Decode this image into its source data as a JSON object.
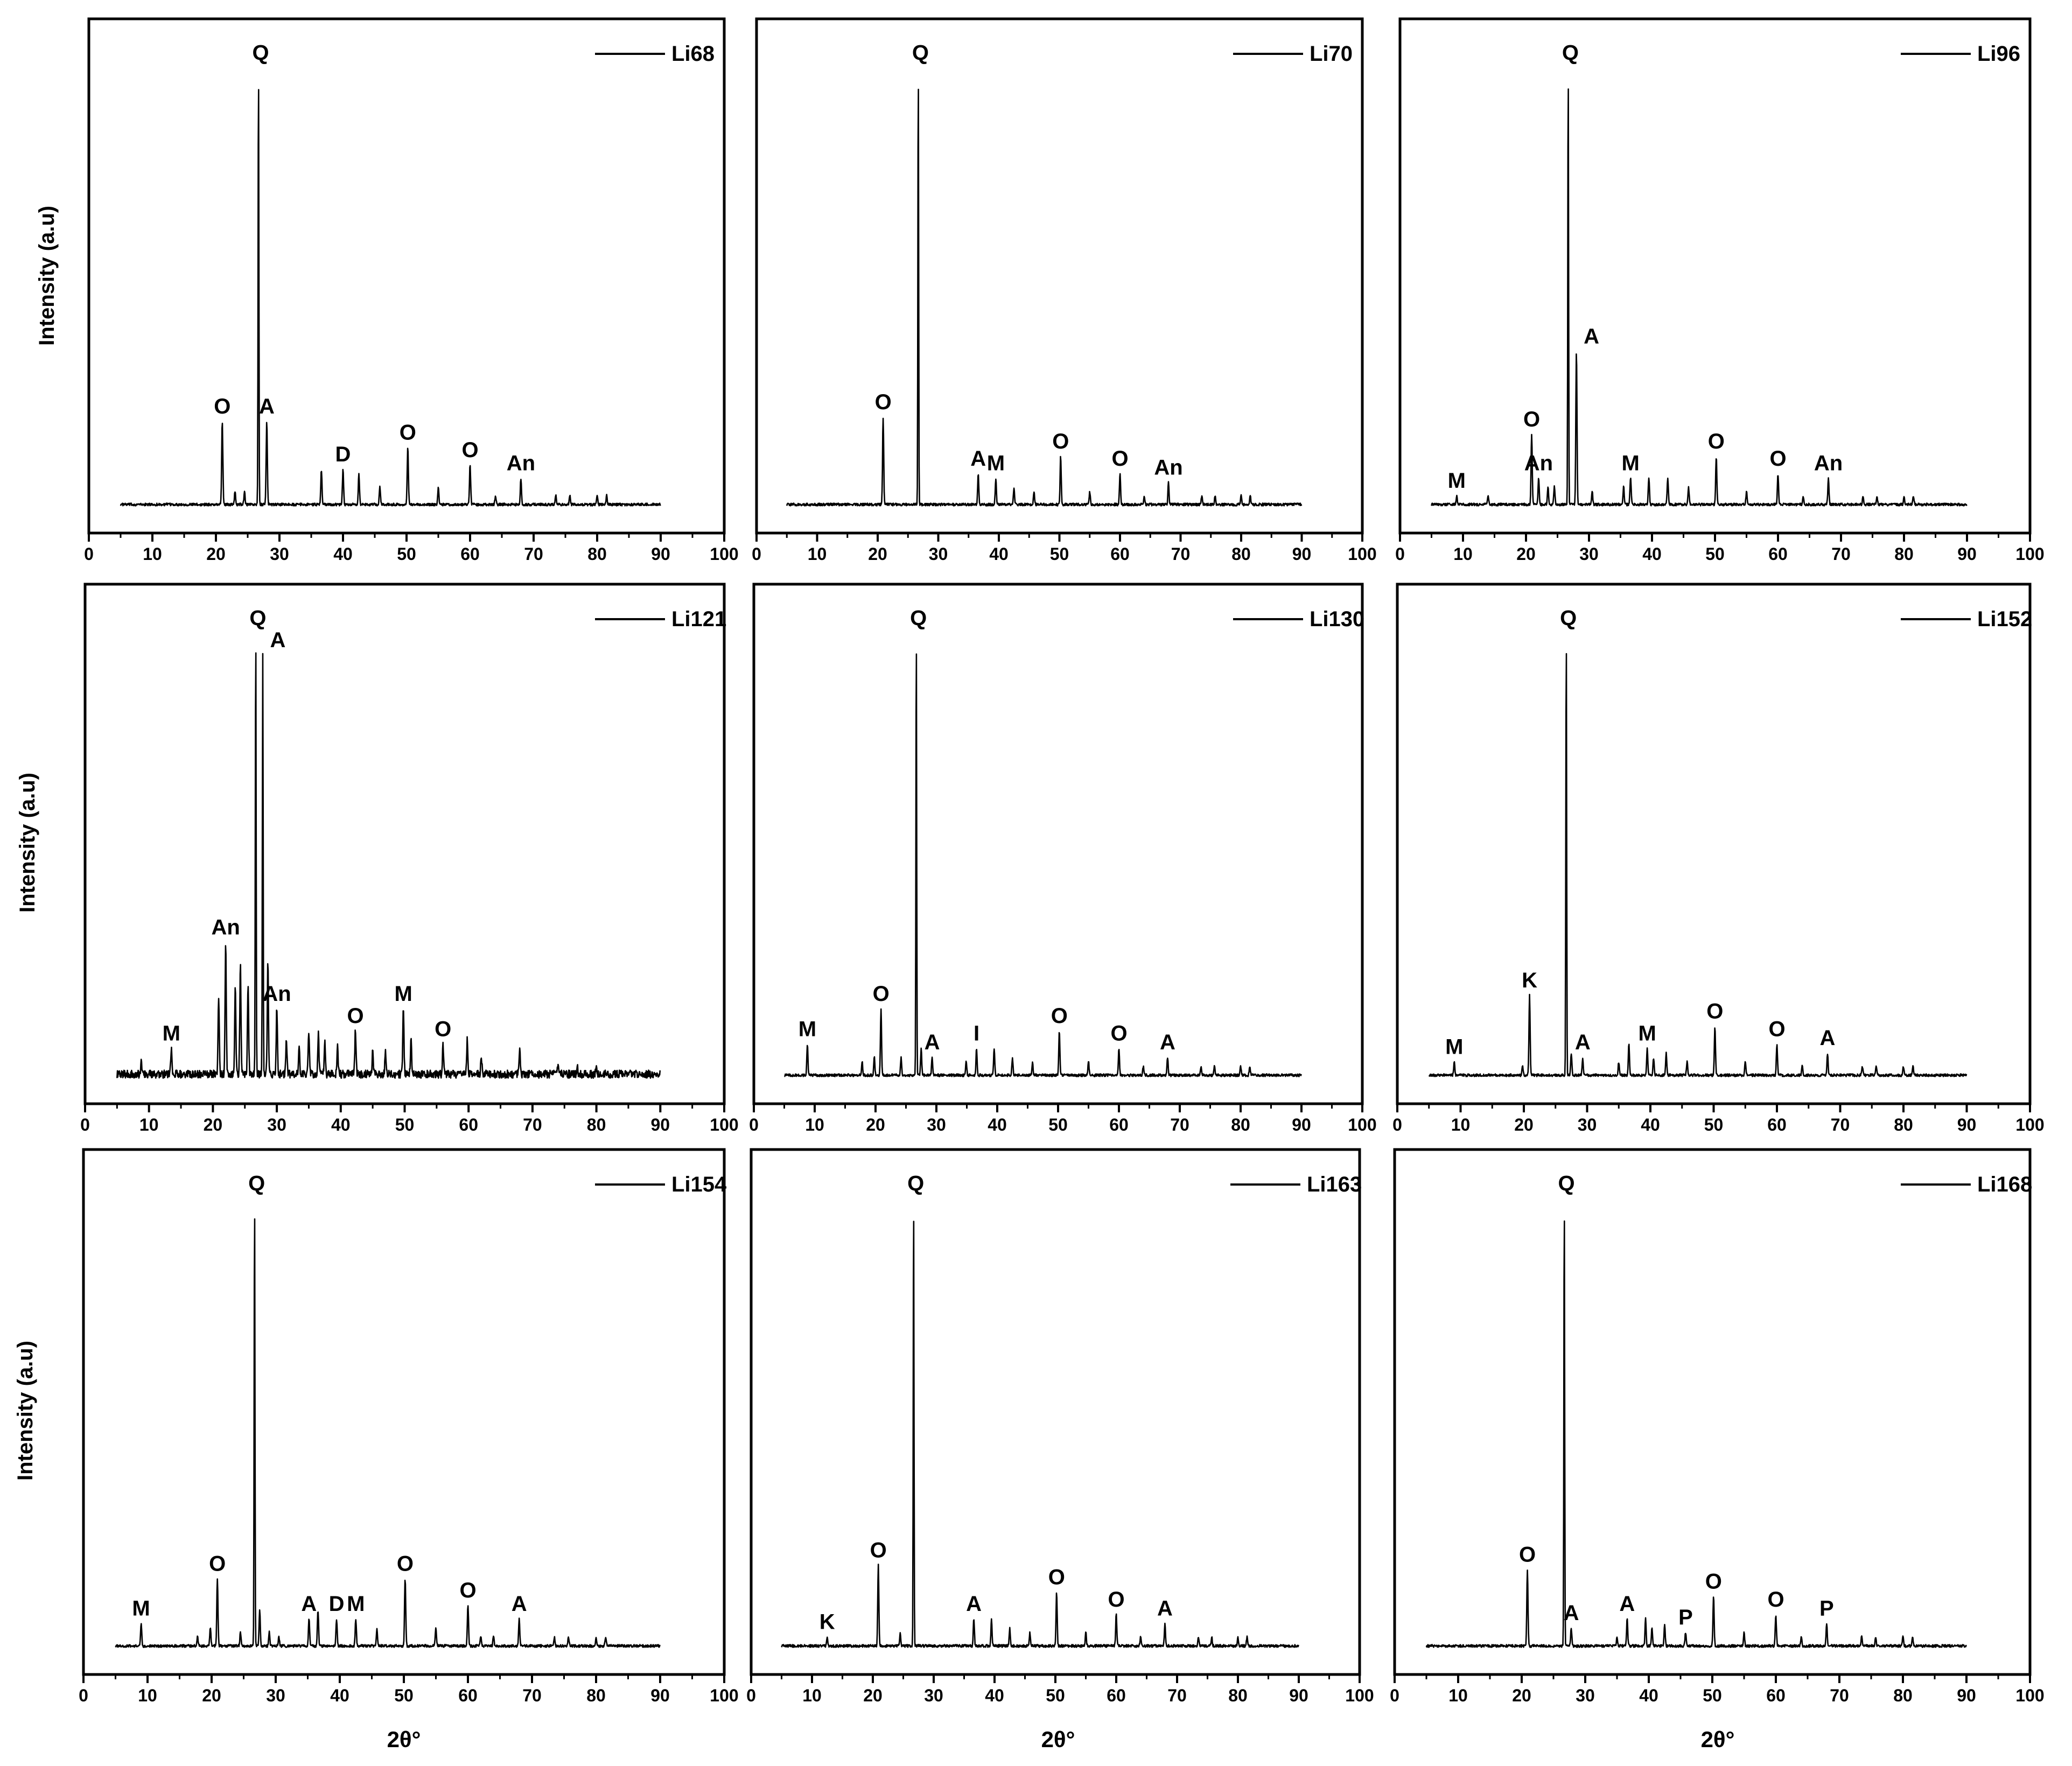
{
  "figure": {
    "y_axis_label": "Intensity (a.u)",
    "x_axis_label": "2θ°",
    "x_ticks": [
      0,
      10,
      20,
      30,
      40,
      50,
      60,
      70,
      80,
      90,
      100
    ],
    "line_color": "#000000"
  },
  "chart_data": [
    {
      "type": "line",
      "series": [
        {
          "name": "Li68"
        }
      ],
      "xlim": [
        0,
        100
      ],
      "x_range": [
        5,
        90
      ],
      "grid": false,
      "legend": "top-right",
      "peaks": [
        {
          "x": 21.0,
          "h": 0.19,
          "label": "O"
        },
        {
          "x": 23.0,
          "h": 0.03
        },
        {
          "x": 24.5,
          "h": 0.03
        },
        {
          "x": 26.7,
          "h": 1.0,
          "label": "Q"
        },
        {
          "x": 28.0,
          "h": 0.19,
          "label": "A"
        },
        {
          "x": 36.6,
          "h": 0.08
        },
        {
          "x": 40.0,
          "h": 0.08,
          "label": "D"
        },
        {
          "x": 42.5,
          "h": 0.07
        },
        {
          "x": 45.8,
          "h": 0.04
        },
        {
          "x": 50.2,
          "h": 0.13,
          "label": "O"
        },
        {
          "x": 55.0,
          "h": 0.04
        },
        {
          "x": 60.0,
          "h": 0.09,
          "label": "O"
        },
        {
          "x": 64.0,
          "h": 0.02
        },
        {
          "x": 68.0,
          "h": 0.06,
          "label": "An"
        },
        {
          "x": 73.5,
          "h": 0.02
        },
        {
          "x": 75.7,
          "h": 0.02
        },
        {
          "x": 80.0,
          "h": 0.02
        },
        {
          "x": 81.5,
          "h": 0.02
        }
      ]
    },
    {
      "type": "line",
      "series": [
        {
          "name": "Li70"
        }
      ],
      "xlim": [
        0,
        100
      ],
      "x_range": [
        5,
        90
      ],
      "grid": false,
      "legend": "top-right",
      "peaks": [
        {
          "x": 20.9,
          "h": 0.2,
          "label": "O"
        },
        {
          "x": 26.7,
          "h": 1.0,
          "label": "Q"
        },
        {
          "x": 36.6,
          "h": 0.07,
          "label": "A"
        },
        {
          "x": 39.5,
          "h": 0.06,
          "label": "M"
        },
        {
          "x": 42.5,
          "h": 0.04
        },
        {
          "x": 45.8,
          "h": 0.03
        },
        {
          "x": 50.2,
          "h": 0.11,
          "label": "O"
        },
        {
          "x": 55.0,
          "h": 0.03
        },
        {
          "x": 60.0,
          "h": 0.07,
          "label": "O"
        },
        {
          "x": 64.0,
          "h": 0.02
        },
        {
          "x": 68.0,
          "h": 0.05,
          "label": "An"
        },
        {
          "x": 73.5,
          "h": 0.02
        },
        {
          "x": 75.7,
          "h": 0.02
        },
        {
          "x": 80.0,
          "h": 0.02
        },
        {
          "x": 81.5,
          "h": 0.02
        }
      ]
    },
    {
      "type": "line",
      "series": [
        {
          "name": "Li96"
        }
      ],
      "xlim": [
        0,
        100
      ],
      "x_range": [
        5,
        90
      ],
      "grid": false,
      "legend": "top-right",
      "peaks": [
        {
          "x": 9.0,
          "h": 0.02,
          "label": "M"
        },
        {
          "x": 14.0,
          "h": 0.02
        },
        {
          "x": 20.9,
          "h": 0.16,
          "label": "O"
        },
        {
          "x": 22.0,
          "h": 0.06,
          "label": "An"
        },
        {
          "x": 23.5,
          "h": 0.04
        },
        {
          "x": 24.5,
          "h": 0.04
        },
        {
          "x": 26.7,
          "h": 1.0,
          "label": "Q"
        },
        {
          "x": 28.0,
          "h": 0.35,
          "label": "A"
        },
        {
          "x": 30.5,
          "h": 0.03
        },
        {
          "x": 35.5,
          "h": 0.04
        },
        {
          "x": 36.6,
          "h": 0.06,
          "label": "M"
        },
        {
          "x": 39.5,
          "h": 0.06
        },
        {
          "x": 42.5,
          "h": 0.06
        },
        {
          "x": 45.8,
          "h": 0.04
        },
        {
          "x": 50.2,
          "h": 0.11,
          "label": "O"
        },
        {
          "x": 55.0,
          "h": 0.03
        },
        {
          "x": 60.0,
          "h": 0.07,
          "label": "O"
        },
        {
          "x": 64.0,
          "h": 0.02
        },
        {
          "x": 68.0,
          "h": 0.06,
          "label": "An"
        },
        {
          "x": 73.5,
          "h": 0.02
        },
        {
          "x": 75.7,
          "h": 0.02
        },
        {
          "x": 80.0,
          "h": 0.02
        },
        {
          "x": 81.5,
          "h": 0.02
        }
      ]
    },
    {
      "type": "line",
      "series": [
        {
          "name": "Li121"
        }
      ],
      "xlim": [
        0,
        100
      ],
      "x_range": [
        5,
        90
      ],
      "grid": false,
      "legend": "top-right",
      "peaks": [
        {
          "x": 8.8,
          "h": 0.03
        },
        {
          "x": 13.5,
          "h": 0.06,
          "label": "M"
        },
        {
          "x": 20.9,
          "h": 0.18
        },
        {
          "x": 22.0,
          "h": 0.3,
          "label": "An"
        },
        {
          "x": 23.5,
          "h": 0.2
        },
        {
          "x": 24.3,
          "h": 0.25
        },
        {
          "x": 25.5,
          "h": 0.2
        },
        {
          "x": 26.7,
          "h": 1.0,
          "label": "Q"
        },
        {
          "x": 27.8,
          "h": 0.95,
          "label": "A"
        },
        {
          "x": 28.6,
          "h": 0.25
        },
        {
          "x": 30.0,
          "h": 0.15,
          "label": "An"
        },
        {
          "x": 31.5,
          "h": 0.08
        },
        {
          "x": 33.5,
          "h": 0.06
        },
        {
          "x": 35.0,
          "h": 0.1
        },
        {
          "x": 36.5,
          "h": 0.09
        },
        {
          "x": 37.5,
          "h": 0.07
        },
        {
          "x": 39.5,
          "h": 0.06
        },
        {
          "x": 42.3,
          "h": 0.1,
          "label": "O"
        },
        {
          "x": 45.0,
          "h": 0.05
        },
        {
          "x": 47.0,
          "h": 0.05
        },
        {
          "x": 49.8,
          "h": 0.15,
          "label": "M"
        },
        {
          "x": 51.0,
          "h": 0.08
        },
        {
          "x": 56.0,
          "h": 0.07,
          "label": "O"
        },
        {
          "x": 59.8,
          "h": 0.08
        },
        {
          "x": 62.0,
          "h": 0.04
        },
        {
          "x": 68.0,
          "h": 0.06
        },
        {
          "x": 74.0,
          "h": 0.02
        },
        {
          "x": 77.0,
          "h": 0.02
        },
        {
          "x": 80.0,
          "h": 0.02
        }
      ]
    },
    {
      "type": "line",
      "series": [
        {
          "name": "Li130"
        }
      ],
      "xlim": [
        0,
        100
      ],
      "x_range": [
        5,
        90
      ],
      "grid": false,
      "legend": "top-right",
      "peaks": [
        {
          "x": 8.8,
          "h": 0.07,
          "label": "M"
        },
        {
          "x": 17.8,
          "h": 0.03
        },
        {
          "x": 19.8,
          "h": 0.04
        },
        {
          "x": 20.9,
          "h": 0.15,
          "label": "O"
        },
        {
          "x": 24.2,
          "h": 0.04
        },
        {
          "x": 26.7,
          "h": 1.0,
          "label": "Q"
        },
        {
          "x": 27.5,
          "h": 0.06
        },
        {
          "x": 29.3,
          "h": 0.04,
          "label": "A"
        },
        {
          "x": 34.9,
          "h": 0.03
        },
        {
          "x": 36.6,
          "h": 0.06,
          "label": "I"
        },
        {
          "x": 39.5,
          "h": 0.06
        },
        {
          "x": 42.5,
          "h": 0.04
        },
        {
          "x": 45.8,
          "h": 0.03
        },
        {
          "x": 50.2,
          "h": 0.1,
          "label": "O"
        },
        {
          "x": 55.0,
          "h": 0.03
        },
        {
          "x": 60.0,
          "h": 0.06,
          "label": "O"
        },
        {
          "x": 64.0,
          "h": 0.02
        },
        {
          "x": 68.0,
          "h": 0.04,
          "label": "A"
        },
        {
          "x": 73.5,
          "h": 0.02
        },
        {
          "x": 75.7,
          "h": 0.02
        },
        {
          "x": 80.0,
          "h": 0.02
        },
        {
          "x": 81.5,
          "h": 0.02
        }
      ]
    },
    {
      "type": "line",
      "series": [
        {
          "name": "Li152"
        }
      ],
      "xlim": [
        0,
        100
      ],
      "x_range": [
        5,
        90
      ],
      "grid": false,
      "legend": "top-right",
      "peaks": [
        {
          "x": 9.0,
          "h": 0.03,
          "label": "M"
        },
        {
          "x": 19.8,
          "h": 0.02
        },
        {
          "x": 20.9,
          "h": 0.18,
          "label": "K"
        },
        {
          "x": 26.7,
          "h": 1.0,
          "label": "Q"
        },
        {
          "x": 27.5,
          "h": 0.05
        },
        {
          "x": 29.3,
          "h": 0.04,
          "label": "A"
        },
        {
          "x": 35.0,
          "h": 0.03
        },
        {
          "x": 36.6,
          "h": 0.07
        },
        {
          "x": 39.5,
          "h": 0.06,
          "label": "M"
        },
        {
          "x": 40.5,
          "h": 0.04
        },
        {
          "x": 42.5,
          "h": 0.05
        },
        {
          "x": 45.8,
          "h": 0.03
        },
        {
          "x": 50.2,
          "h": 0.11,
          "label": "O"
        },
        {
          "x": 55.0,
          "h": 0.03
        },
        {
          "x": 60.0,
          "h": 0.07,
          "label": "O"
        },
        {
          "x": 64.0,
          "h": 0.02
        },
        {
          "x": 68.0,
          "h": 0.05,
          "label": "A"
        },
        {
          "x": 73.5,
          "h": 0.02
        },
        {
          "x": 75.7,
          "h": 0.02
        },
        {
          "x": 80.0,
          "h": 0.02
        },
        {
          "x": 81.5,
          "h": 0.02
        }
      ]
    },
    {
      "type": "line",
      "series": [
        {
          "name": "Li154"
        }
      ],
      "xlim": [
        0,
        100
      ],
      "x_range": [
        5,
        90
      ],
      "grid": false,
      "legend": "top-right",
      "peaks": [
        {
          "x": 9.0,
          "h": 0.05,
          "label": "M"
        },
        {
          "x": 17.8,
          "h": 0.02
        },
        {
          "x": 19.8,
          "h": 0.04
        },
        {
          "x": 20.9,
          "h": 0.15,
          "label": "O"
        },
        {
          "x": 24.5,
          "h": 0.03
        },
        {
          "x": 26.7,
          "h": 1.0,
          "label": "Q"
        },
        {
          "x": 27.5,
          "h": 0.08
        },
        {
          "x": 29.0,
          "h": 0.03
        },
        {
          "x": 30.5,
          "h": 0.02
        },
        {
          "x": 35.2,
          "h": 0.06,
          "label": "A"
        },
        {
          "x": 36.6,
          "h": 0.08
        },
        {
          "x": 39.5,
          "h": 0.06,
          "label": "D"
        },
        {
          "x": 42.5,
          "h": 0.06,
          "label": "M"
        },
        {
          "x": 45.8,
          "h": 0.04
        },
        {
          "x": 50.2,
          "h": 0.15,
          "label": "O"
        },
        {
          "x": 55.0,
          "h": 0.04
        },
        {
          "x": 60.0,
          "h": 0.09,
          "label": "O"
        },
        {
          "x": 62.0,
          "h": 0.02
        },
        {
          "x": 64.0,
          "h": 0.02
        },
        {
          "x": 68.0,
          "h": 0.06,
          "label": "A"
        },
        {
          "x": 73.5,
          "h": 0.02
        },
        {
          "x": 75.7,
          "h": 0.02
        },
        {
          "x": 80.0,
          "h": 0.02
        },
        {
          "x": 81.5,
          "h": 0.02
        }
      ]
    },
    {
      "type": "line",
      "series": [
        {
          "name": "Li163"
        }
      ],
      "xlim": [
        0,
        100
      ],
      "x_range": [
        5,
        90
      ],
      "grid": false,
      "legend": "top-right",
      "peaks": [
        {
          "x": 12.5,
          "h": 0.02,
          "label": "K"
        },
        {
          "x": 20.9,
          "h": 0.18,
          "label": "O"
        },
        {
          "x": 24.5,
          "h": 0.03
        },
        {
          "x": 26.7,
          "h": 1.0,
          "label": "Q"
        },
        {
          "x": 36.6,
          "h": 0.06,
          "label": "A"
        },
        {
          "x": 39.5,
          "h": 0.06
        },
        {
          "x": 42.5,
          "h": 0.04
        },
        {
          "x": 45.8,
          "h": 0.03
        },
        {
          "x": 50.2,
          "h": 0.12,
          "label": "O"
        },
        {
          "x": 55.0,
          "h": 0.03
        },
        {
          "x": 60.0,
          "h": 0.07,
          "label": "O"
        },
        {
          "x": 64.0,
          "h": 0.02
        },
        {
          "x": 68.0,
          "h": 0.05,
          "label": "A"
        },
        {
          "x": 73.5,
          "h": 0.02
        },
        {
          "x": 75.7,
          "h": 0.02
        },
        {
          "x": 80.0,
          "h": 0.02
        },
        {
          "x": 81.5,
          "h": 0.02
        }
      ]
    },
    {
      "type": "line",
      "series": [
        {
          "name": "Li168"
        }
      ],
      "xlim": [
        0,
        100
      ],
      "x_range": [
        5,
        90
      ],
      "grid": false,
      "legend": "top-right",
      "peaks": [
        {
          "x": 20.9,
          "h": 0.17,
          "label": "O"
        },
        {
          "x": 26.7,
          "h": 1.0,
          "label": "Q"
        },
        {
          "x": 27.8,
          "h": 0.04,
          "label": "A"
        },
        {
          "x": 35.0,
          "h": 0.02
        },
        {
          "x": 36.6,
          "h": 0.06,
          "label": "A"
        },
        {
          "x": 39.5,
          "h": 0.06
        },
        {
          "x": 40.5,
          "h": 0.04
        },
        {
          "x": 42.5,
          "h": 0.05
        },
        {
          "x": 45.8,
          "h": 0.03,
          "label": "P"
        },
        {
          "x": 50.2,
          "h": 0.11,
          "label": "O"
        },
        {
          "x": 55.0,
          "h": 0.03
        },
        {
          "x": 60.0,
          "h": 0.07,
          "label": "O"
        },
        {
          "x": 64.0,
          "h": 0.02
        },
        {
          "x": 68.0,
          "h": 0.05,
          "label": "P"
        },
        {
          "x": 73.5,
          "h": 0.02
        },
        {
          "x": 75.7,
          "h": 0.02
        },
        {
          "x": 80.0,
          "h": 0.02
        },
        {
          "x": 81.5,
          "h": 0.02
        }
      ]
    }
  ]
}
